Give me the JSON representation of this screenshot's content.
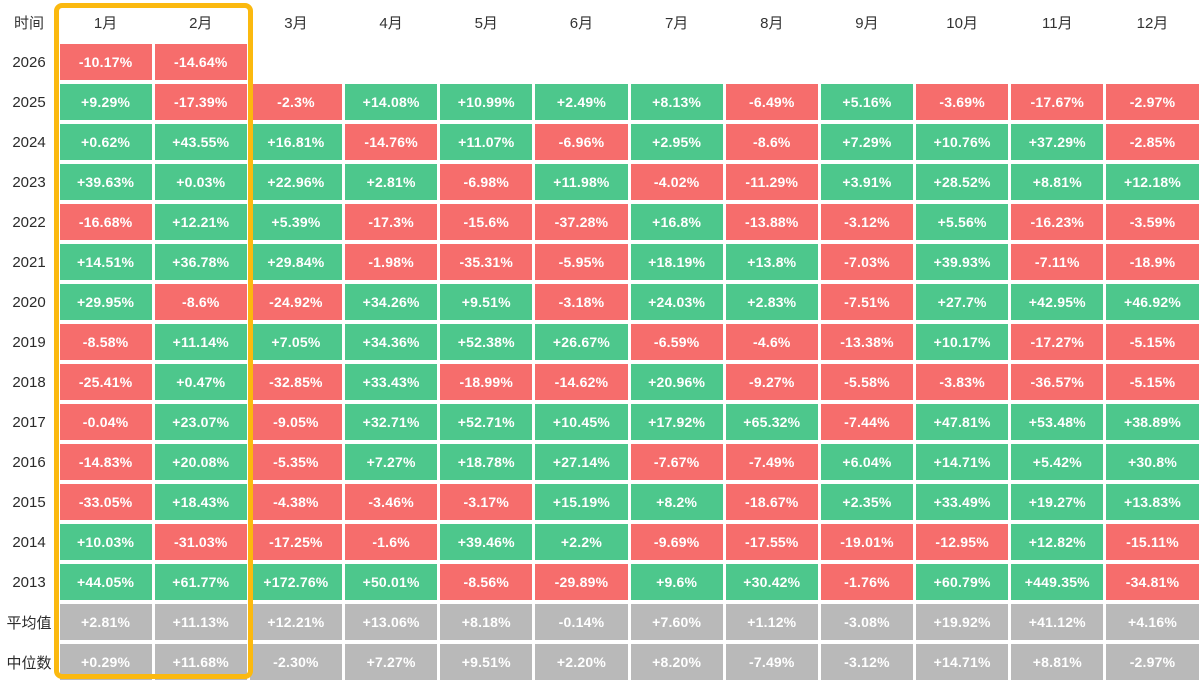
{
  "colors": {
    "positive": "#4dc78c",
    "negative": "#f66d6c",
    "neutral": "#b9b9b9",
    "highlight_border": "#fbb90f",
    "header_text": "#333333",
    "label_text": "#2b2b2b",
    "cell_text": "#ffffff"
  },
  "table": {
    "corner_label": "时间",
    "columns": [
      "1月",
      "2月",
      "3月",
      "4月",
      "5月",
      "6月",
      "7月",
      "8月",
      "9月",
      "10月",
      "11月",
      "12月"
    ],
    "highlighted_columns": [
      "1月",
      "2月"
    ],
    "rows": [
      {
        "label": "2026",
        "type": "year",
        "cells": [
          "-10.17%",
          "-14.64%",
          "",
          "",
          "",
          "",
          "",
          "",
          "",
          "",
          "",
          ""
        ]
      },
      {
        "label": "2025",
        "type": "year",
        "cells": [
          "+9.29%",
          "-17.39%",
          "-2.3%",
          "+14.08%",
          "+10.99%",
          "+2.49%",
          "+8.13%",
          "-6.49%",
          "+5.16%",
          "-3.69%",
          "-17.67%",
          "-2.97%"
        ]
      },
      {
        "label": "2024",
        "type": "year",
        "cells": [
          "+0.62%",
          "+43.55%",
          "+16.81%",
          "-14.76%",
          "+11.07%",
          "-6.96%",
          "+2.95%",
          "-8.6%",
          "+7.29%",
          "+10.76%",
          "+37.29%",
          "-2.85%"
        ]
      },
      {
        "label": "2023",
        "type": "year",
        "cells": [
          "+39.63%",
          "+0.03%",
          "+22.96%",
          "+2.81%",
          "-6.98%",
          "+11.98%",
          "-4.02%",
          "-11.29%",
          "+3.91%",
          "+28.52%",
          "+8.81%",
          "+12.18%"
        ]
      },
      {
        "label": "2022",
        "type": "year",
        "cells": [
          "-16.68%",
          "+12.21%",
          "+5.39%",
          "-17.3%",
          "-15.6%",
          "-37.28%",
          "+16.8%",
          "-13.88%",
          "-3.12%",
          "+5.56%",
          "-16.23%",
          "-3.59%"
        ]
      },
      {
        "label": "2021",
        "type": "year",
        "cells": [
          "+14.51%",
          "+36.78%",
          "+29.84%",
          "-1.98%",
          "-35.31%",
          "-5.95%",
          "+18.19%",
          "+13.8%",
          "-7.03%",
          "+39.93%",
          "-7.11%",
          "-18.9%"
        ]
      },
      {
        "label": "2020",
        "type": "year",
        "cells": [
          "+29.95%",
          "-8.6%",
          "-24.92%",
          "+34.26%",
          "+9.51%",
          "-3.18%",
          "+24.03%",
          "+2.83%",
          "-7.51%",
          "+27.7%",
          "+42.95%",
          "+46.92%"
        ]
      },
      {
        "label": "2019",
        "type": "year",
        "cells": [
          "-8.58%",
          "+11.14%",
          "+7.05%",
          "+34.36%",
          "+52.38%",
          "+26.67%",
          "-6.59%",
          "-4.6%",
          "-13.38%",
          "+10.17%",
          "-17.27%",
          "-5.15%"
        ]
      },
      {
        "label": "2018",
        "type": "year",
        "cells": [
          "-25.41%",
          "+0.47%",
          "-32.85%",
          "+33.43%",
          "-18.99%",
          "-14.62%",
          "+20.96%",
          "-9.27%",
          "-5.58%",
          "-3.83%",
          "-36.57%",
          "-5.15%"
        ]
      },
      {
        "label": "2017",
        "type": "year",
        "cells": [
          "-0.04%",
          "+23.07%",
          "-9.05%",
          "+32.71%",
          "+52.71%",
          "+10.45%",
          "+17.92%",
          "+65.32%",
          "-7.44%",
          "+47.81%",
          "+53.48%",
          "+38.89%"
        ]
      },
      {
        "label": "2016",
        "type": "year",
        "cells": [
          "-14.83%",
          "+20.08%",
          "-5.35%",
          "+7.27%",
          "+18.78%",
          "+27.14%",
          "-7.67%",
          "-7.49%",
          "+6.04%",
          "+14.71%",
          "+5.42%",
          "+30.8%"
        ]
      },
      {
        "label": "2015",
        "type": "year",
        "cells": [
          "-33.05%",
          "+18.43%",
          "-4.38%",
          "-3.46%",
          "-3.17%",
          "+15.19%",
          "+8.2%",
          "-18.67%",
          "+2.35%",
          "+33.49%",
          "+19.27%",
          "+13.83%"
        ]
      },
      {
        "label": "2014",
        "type": "year",
        "cells": [
          "+10.03%",
          "-31.03%",
          "-17.25%",
          "-1.6%",
          "+39.46%",
          "+2.2%",
          "-9.69%",
          "-17.55%",
          "-19.01%",
          "-12.95%",
          "+12.82%",
          "-15.11%"
        ]
      },
      {
        "label": "2013",
        "type": "year",
        "cells": [
          "+44.05%",
          "+61.77%",
          "+172.76%",
          "+50.01%",
          "-8.56%",
          "-29.89%",
          "+9.6%",
          "+30.42%",
          "-1.76%",
          "+60.79%",
          "+449.35%",
          "-34.81%"
        ]
      },
      {
        "label": "平均值",
        "type": "summary",
        "cells": [
          "+2.81%",
          "+11.13%",
          "+12.21%",
          "+13.06%",
          "+8.18%",
          "-0.14%",
          "+7.60%",
          "+1.12%",
          "-3.08%",
          "+19.92%",
          "+41.12%",
          "+4.16%"
        ]
      },
      {
        "label": "中位数",
        "type": "summary",
        "cells": [
          "+0.29%",
          "+11.68%",
          "-2.30%",
          "+7.27%",
          "+9.51%",
          "+2.20%",
          "+8.20%",
          "-7.49%",
          "-3.12%",
          "+14.71%",
          "+8.81%",
          "-2.97%"
        ]
      }
    ]
  },
  "chart_data": {
    "type": "heatmap",
    "title": "",
    "xlabel": "时间",
    "x": [
      "1月",
      "2月",
      "3月",
      "4月",
      "5月",
      "6月",
      "7月",
      "8月",
      "9月",
      "10月",
      "11月",
      "12月"
    ],
    "value_unit": "percent",
    "color_rule": "green if positive, red if negative, gray for summary rows",
    "series": [
      {
        "name": "2026",
        "values": [
          -10.17,
          -14.64,
          null,
          null,
          null,
          null,
          null,
          null,
          null,
          null,
          null,
          null
        ]
      },
      {
        "name": "2025",
        "values": [
          9.29,
          -17.39,
          -2.3,
          14.08,
          10.99,
          2.49,
          8.13,
          -6.49,
          5.16,
          -3.69,
          -17.67,
          -2.97
        ]
      },
      {
        "name": "2024",
        "values": [
          0.62,
          43.55,
          16.81,
          -14.76,
          11.07,
          -6.96,
          2.95,
          -8.6,
          7.29,
          10.76,
          37.29,
          -2.85
        ]
      },
      {
        "name": "2023",
        "values": [
          39.63,
          0.03,
          22.96,
          2.81,
          -6.98,
          11.98,
          -4.02,
          -11.29,
          3.91,
          28.52,
          8.81,
          12.18
        ]
      },
      {
        "name": "2022",
        "values": [
          -16.68,
          12.21,
          5.39,
          -17.3,
          -15.6,
          -37.28,
          16.8,
          -13.88,
          -3.12,
          5.56,
          -16.23,
          -3.59
        ]
      },
      {
        "name": "2021",
        "values": [
          14.51,
          36.78,
          29.84,
          -1.98,
          -35.31,
          -5.95,
          18.19,
          13.8,
          -7.03,
          39.93,
          -7.11,
          -18.9
        ]
      },
      {
        "name": "2020",
        "values": [
          29.95,
          -8.6,
          -24.92,
          34.26,
          9.51,
          -3.18,
          24.03,
          2.83,
          -7.51,
          27.7,
          42.95,
          46.92
        ]
      },
      {
        "name": "2019",
        "values": [
          -8.58,
          11.14,
          7.05,
          34.36,
          52.38,
          26.67,
          -6.59,
          -4.6,
          -13.38,
          10.17,
          -17.27,
          -5.15
        ]
      },
      {
        "name": "2018",
        "values": [
          -25.41,
          0.47,
          -32.85,
          33.43,
          -18.99,
          -14.62,
          20.96,
          -9.27,
          -5.58,
          -3.83,
          -36.57,
          -5.15
        ]
      },
      {
        "name": "2017",
        "values": [
          -0.04,
          23.07,
          -9.05,
          32.71,
          52.71,
          10.45,
          17.92,
          65.32,
          -7.44,
          47.81,
          53.48,
          38.89
        ]
      },
      {
        "name": "2016",
        "values": [
          -14.83,
          20.08,
          -5.35,
          7.27,
          18.78,
          27.14,
          -7.67,
          -7.49,
          6.04,
          14.71,
          5.42,
          30.8
        ]
      },
      {
        "name": "2015",
        "values": [
          -33.05,
          18.43,
          -4.38,
          -3.46,
          -3.17,
          15.19,
          8.2,
          -18.67,
          2.35,
          33.49,
          19.27,
          13.83
        ]
      },
      {
        "name": "2014",
        "values": [
          10.03,
          -31.03,
          -17.25,
          -1.6,
          39.46,
          2.2,
          -9.69,
          -17.55,
          -19.01,
          -12.95,
          12.82,
          -15.11
        ]
      },
      {
        "name": "2013",
        "values": [
          44.05,
          61.77,
          172.76,
          50.01,
          -8.56,
          -29.89,
          9.6,
          30.42,
          -1.76,
          60.79,
          449.35,
          -34.81
        ]
      },
      {
        "name": "平均值",
        "values": [
          2.81,
          11.13,
          12.21,
          13.06,
          8.18,
          -0.14,
          7.6,
          1.12,
          -3.08,
          19.92,
          41.12,
          4.16
        ]
      },
      {
        "name": "中位数",
        "values": [
          0.29,
          11.68,
          -2.3,
          7.27,
          9.51,
          2.2,
          8.2,
          -7.49,
          -3.12,
          14.71,
          8.81,
          -2.97
        ]
      }
    ]
  }
}
